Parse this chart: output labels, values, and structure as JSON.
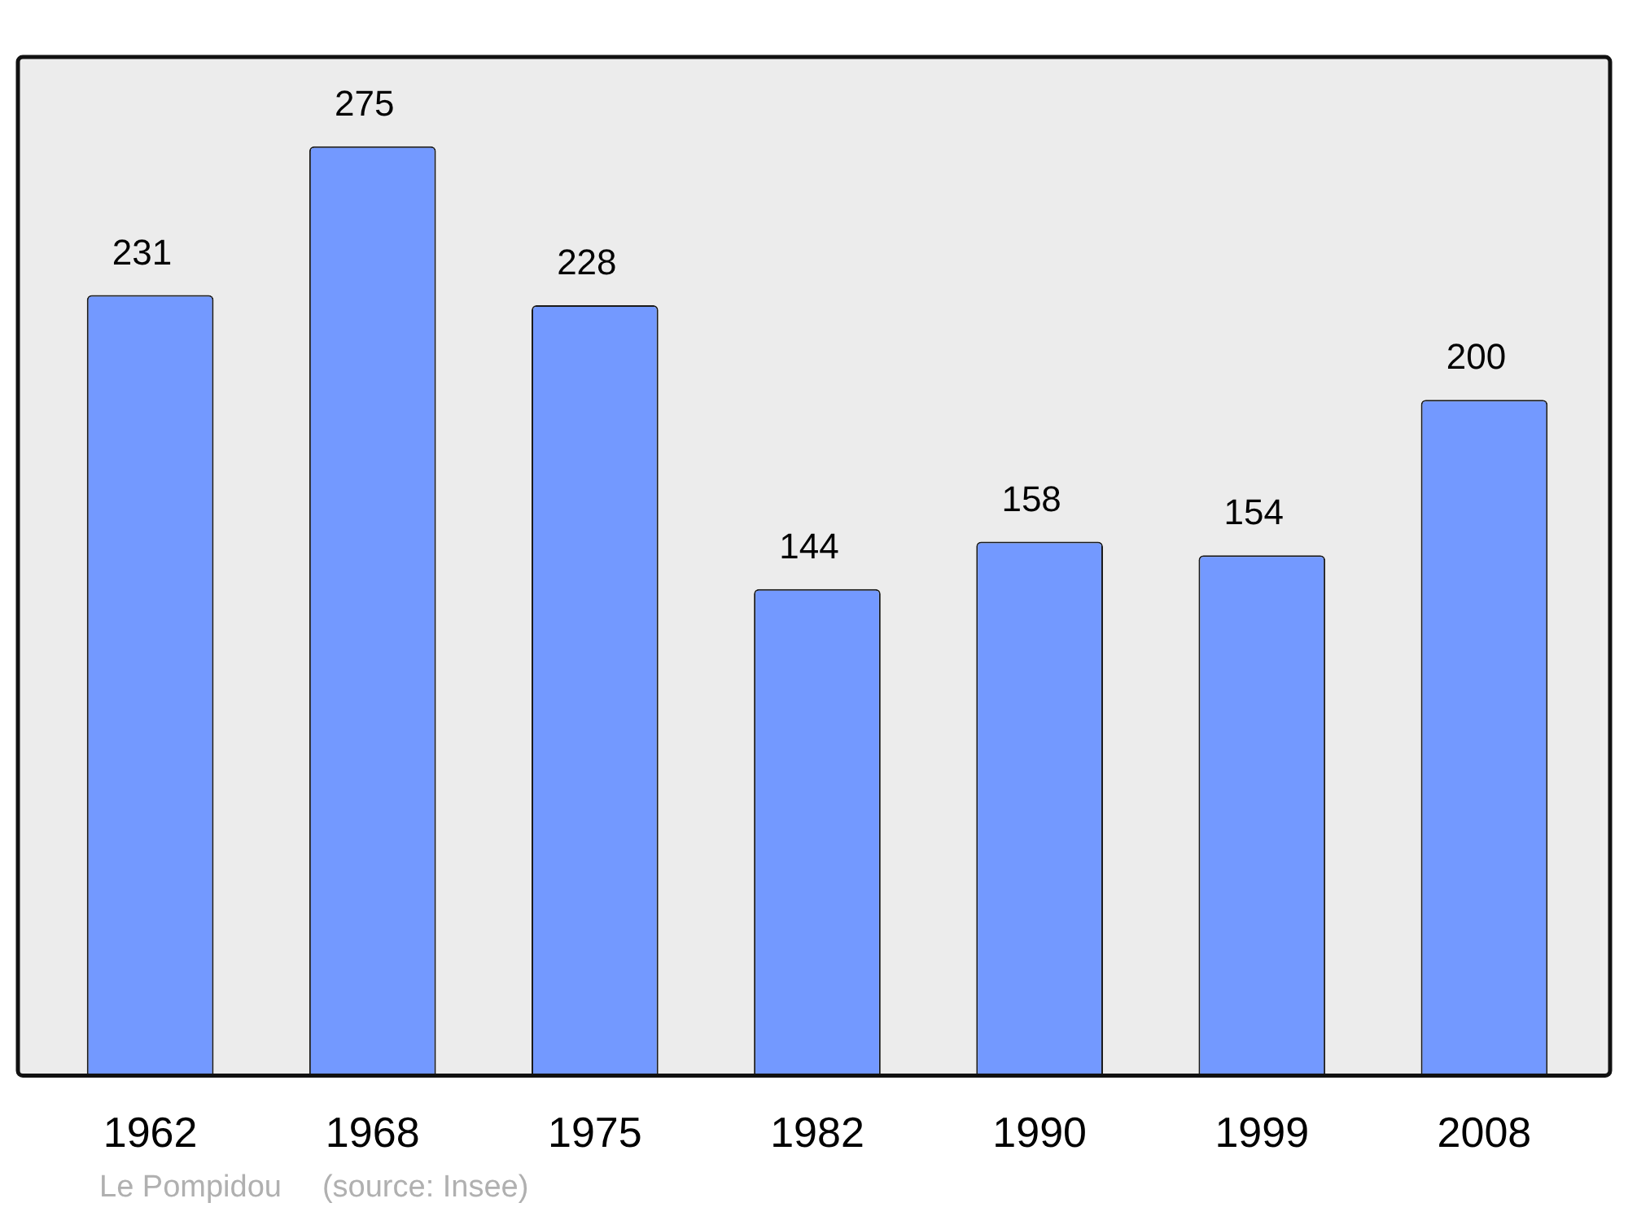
{
  "chart_data": {
    "type": "bar",
    "categories": [
      "1962",
      "1968",
      "1975",
      "1982",
      "1990",
      "1999",
      "2008"
    ],
    "values": [
      231,
      275,
      228,
      144,
      158,
      154,
      200
    ],
    "color": "#7399ff",
    "data_labels": true,
    "grid": false,
    "legend": false,
    "tick_labels": "x",
    "annotations": [
      "Le Pompidou",
      "(source: Insee)"
    ]
  }
}
